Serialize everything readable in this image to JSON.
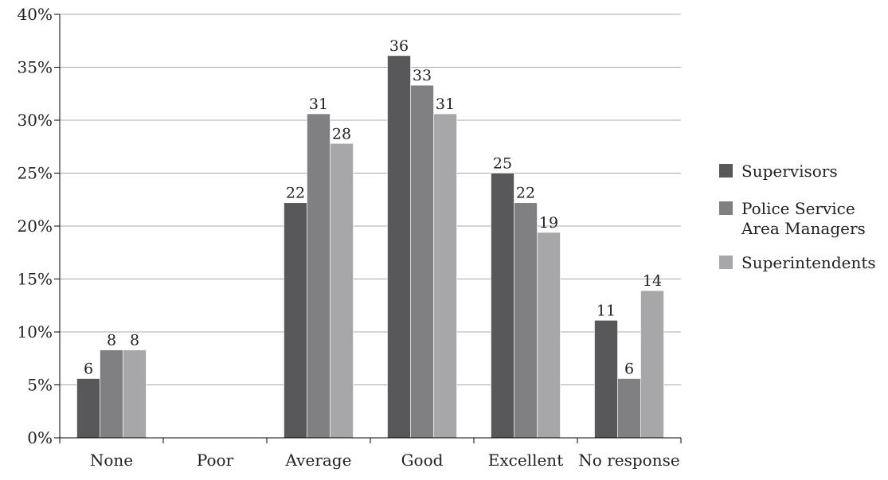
{
  "chart_data": {
    "type": "bar",
    "title": "",
    "xlabel": "",
    "ylabel": "",
    "categories": [
      "None",
      "Poor",
      "Average",
      "Good",
      "Excellent",
      "No response"
    ],
    "series": [
      {
        "name": "Supervisors",
        "color": "#58585a",
        "values": [
          5.6,
          0,
          22.2,
          36.1,
          25.0,
          11.1
        ],
        "labels": [
          "6",
          "",
          "22",
          "36",
          "25",
          "11"
        ]
      },
      {
        "name": "Police Service Area Managers",
        "color": "#808082",
        "values": [
          8.3,
          0,
          30.6,
          33.3,
          22.2,
          5.6
        ],
        "labels": [
          "8",
          "",
          "31",
          "33",
          "22",
          "6"
        ]
      },
      {
        "name": "Superintendents",
        "color": "#a7a7a9",
        "values": [
          8.3,
          0,
          27.8,
          30.6,
          19.4,
          13.9
        ],
        "labels": [
          "8",
          "",
          "28",
          "31",
          "19",
          "14"
        ]
      }
    ],
    "ylim": [
      0,
      40
    ],
    "yticks": [
      0,
      5,
      10,
      15,
      20,
      25,
      30,
      35,
      40
    ],
    "ytick_labels": [
      "0%",
      "5%",
      "10%",
      "15%",
      "20%",
      "25%",
      "30%",
      "35%",
      "40%"
    ],
    "grid": true,
    "legend": {
      "position": "right",
      "entries": [
        {
          "lines": [
            "Supervisors"
          ]
        },
        {
          "lines": [
            "Police Service",
            "Area Managers"
          ]
        },
        {
          "lines": [
            "Superintendents"
          ]
        }
      ]
    }
  }
}
